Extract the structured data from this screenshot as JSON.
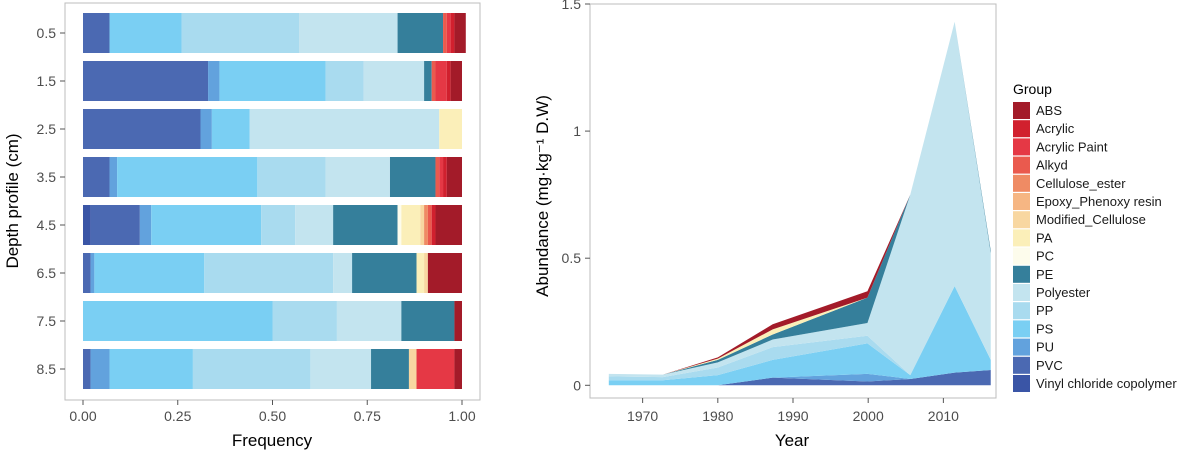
{
  "palette": {
    "ABS": "#a31b29",
    "Acrylic": "#d1202e",
    "Acrylic Paint": "#e53845",
    "Alkyd": "#ea5a4e",
    "Cellulose_ester": "#ef8b64",
    "Epoxy_Phenoxy resin": "#f6b683",
    "Modified_Cellulose": "#f8d7a1",
    "PA": "#fbefb9",
    "PC": "#fdfcec",
    "PE": "#357f9b",
    "Polyester": "#c3e4ef",
    "PP": "#a9dbef",
    "PS": "#7acff3",
    "PU": "#62a2dd",
    "PVC": "#4b69b2",
    "Vinyl chloride copolymer": "#3a55a6"
  },
  "chart_data": [
    {
      "type": "bar",
      "orientation": "horizontal",
      "stacked": true,
      "xlabel": "Frequency",
      "ylabel": "Depth profile (cm)",
      "xlim": [
        0,
        1
      ],
      "xticks": [
        "0.00",
        "0.25",
        "0.50",
        "0.75",
        "1.00"
      ],
      "categories": [
        "0.5",
        "1.5",
        "2.5",
        "3.5",
        "4.5",
        "6.5",
        "7.5",
        "8.5"
      ],
      "series": [
        {
          "name": "Vinyl chloride copolymer",
          "values": [
            0.0,
            0.0,
            0.0,
            0.0,
            0.02,
            0.0,
            0.0,
            0.0
          ]
        },
        {
          "name": "PVC",
          "values": [
            0.07,
            0.33,
            0.31,
            0.07,
            0.13,
            0.02,
            0.0,
            0.02
          ]
        },
        {
          "name": "PU",
          "values": [
            0.0,
            0.03,
            0.03,
            0.02,
            0.03,
            0.01,
            0.0,
            0.05
          ]
        },
        {
          "name": "PS",
          "values": [
            0.19,
            0.28,
            0.1,
            0.37,
            0.29,
            0.29,
            0.5,
            0.22
          ]
        },
        {
          "name": "PP",
          "values": [
            0.31,
            0.1,
            0.0,
            0.18,
            0.09,
            0.34,
            0.17,
            0.31
          ]
        },
        {
          "name": "Polyester",
          "values": [
            0.26,
            0.16,
            0.5,
            0.17,
            0.1,
            0.05,
            0.17,
            0.16
          ]
        },
        {
          "name": "PE",
          "values": [
            0.12,
            0.02,
            0.0,
            0.12,
            0.17,
            0.17,
            0.14,
            0.1
          ]
        },
        {
          "name": "PC",
          "values": [
            0.0,
            0.0,
            0.0,
            0.0,
            0.01,
            0.0,
            0.0,
            0.0
          ]
        },
        {
          "name": "PA",
          "values": [
            0.0,
            0.0,
            0.06,
            0.0,
            0.05,
            0.02,
            0.0,
            0.0
          ]
        },
        {
          "name": "Modified_Cellulose",
          "values": [
            0.0,
            0.0,
            0.0,
            0.0,
            0.01,
            0.01,
            0.0,
            0.02
          ]
        },
        {
          "name": "Epoxy_Phenoxy resin",
          "values": [
            0.0,
            0.0,
            0.0,
            0.0,
            0.0,
            0.0,
            0.0,
            0.0
          ]
        },
        {
          "name": "Cellulose_ester",
          "values": [
            0.0,
            0.0,
            0.0,
            0.0,
            0.01,
            0.0,
            0.0,
            0.0
          ]
        },
        {
          "name": "Alkyd",
          "values": [
            0.01,
            0.01,
            0.0,
            0.01,
            0.01,
            0.0,
            0.0,
            0.0
          ]
        },
        {
          "name": "Acrylic Paint",
          "values": [
            0.01,
            0.03,
            0.0,
            0.01,
            0.0,
            0.0,
            0.0,
            0.1
          ]
        },
        {
          "name": "Acrylic",
          "values": [
            0.01,
            0.01,
            0.0,
            0.01,
            0.01,
            0.0,
            0.0,
            0.0
          ]
        },
        {
          "name": "ABS",
          "values": [
            0.03,
            0.03,
            0.0,
            0.04,
            0.07,
            0.09,
            0.02,
            0.02
          ]
        }
      ]
    },
    {
      "type": "area",
      "stacked": true,
      "xlabel": "Year",
      "ylabel": "Abundance (mg·kg⁻¹ D.W)",
      "xlim": [
        1963,
        2017
      ],
      "ylim": [
        -0.05,
        1.5
      ],
      "xticks": [
        1970,
        1980,
        1990,
        2000,
        2010
      ],
      "yticks": [
        0,
        0.5,
        1,
        1.5
      ],
      "ytick_labels": [
        "0",
        "0.5",
        "1",
        "1.5"
      ],
      "x": [
        1965.5,
        1972.7,
        1980.0,
        1987.3,
        1999.9,
        2005.6,
        2011.5,
        2016.3
      ],
      "series": [
        {
          "name": "Vinyl chloride copolymer",
          "values": [
            0,
            0,
            0,
            0,
            0,
            0,
            0,
            0
          ]
        },
        {
          "name": "PVC",
          "values": [
            0,
            0,
            0,
            0.03,
            0.015,
            0.025,
            0.05,
            0.06
          ]
        },
        {
          "name": "PU",
          "values": [
            0,
            0,
            0,
            0,
            0.03,
            0,
            0,
            0
          ]
        },
        {
          "name": "PS",
          "values": [
            0.02,
            0.02,
            0.04,
            0.07,
            0.12,
            0.015,
            0.34,
            0.04
          ]
        },
        {
          "name": "PP",
          "values": [
            0.015,
            0.012,
            0.03,
            0.05,
            0.03,
            0,
            0,
            0
          ]
        },
        {
          "name": "Polyester",
          "values": [
            0.01,
            0.01,
            0.02,
            0.03,
            0.05,
            0.71,
            1.04,
            0.42
          ]
        },
        {
          "name": "PE",
          "values": [
            0,
            0,
            0.01,
            0.02,
            0.1,
            0,
            0,
            0.01
          ]
        },
        {
          "name": "PC",
          "values": [
            0,
            0,
            0,
            0,
            0,
            0,
            0,
            0
          ]
        },
        {
          "name": "PA",
          "values": [
            0,
            0,
            0.005,
            0.02,
            0,
            0,
            0,
            0
          ]
        },
        {
          "name": "Modified_Cellulose",
          "values": [
            0,
            0,
            0,
            0,
            0,
            0,
            0,
            0
          ]
        },
        {
          "name": "Epoxy_Phenoxy resin",
          "values": [
            0,
            0,
            0,
            0,
            0,
            0,
            0,
            0
          ]
        },
        {
          "name": "Cellulose_ester",
          "values": [
            0,
            0,
            0,
            0,
            0,
            0,
            0,
            0
          ]
        },
        {
          "name": "Alkyd",
          "values": [
            0,
            0,
            0,
            0,
            0,
            0,
            0,
            0
          ]
        },
        {
          "name": "Acrylic Paint",
          "values": [
            0,
            0,
            0,
            0,
            0,
            0,
            0,
            0
          ]
        },
        {
          "name": "Acrylic",
          "values": [
            0,
            0,
            0,
            0,
            0,
            0,
            0,
            0
          ]
        },
        {
          "name": "ABS",
          "values": [
            0,
            0,
            0.005,
            0.02,
            0.025,
            0,
            0,
            0
          ]
        }
      ],
      "legend": {
        "title": "Group",
        "position": "right",
        "entries": [
          "ABS",
          "Acrylic",
          "Acrylic Paint",
          "Alkyd",
          "Cellulose_ester",
          "Epoxy_Phenoxy resin",
          "Modified_Cellulose",
          "PA",
          "PC",
          "PE",
          "Polyester",
          "PP",
          "PS",
          "PU",
          "PVC",
          "Vinyl chloride copolymer"
        ]
      }
    }
  ]
}
